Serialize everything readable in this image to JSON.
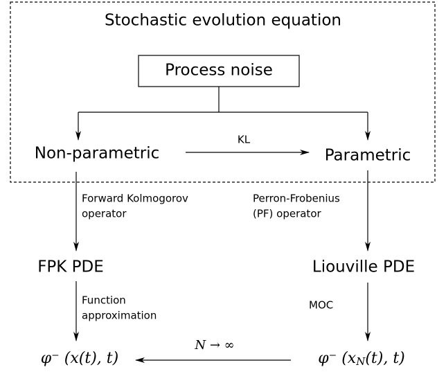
{
  "title": "Stochastic evolution equation",
  "nodes": {
    "process_noise": "Process noise",
    "non_parametric": "Non-parametric",
    "parametric": "Parametric",
    "fpk_pde": "FPK PDE",
    "liouville_pde": "Liouville PDE",
    "phi_left": "φ⁻ (x(t), t)",
    "phi_right": {
      "base": "φ⁻ (x",
      "sub": "N",
      "rest": "(t), t)"
    }
  },
  "edges": {
    "kl": "KL",
    "forward_kolmogorov": [
      "Forward Kolmogorov",
      "operator"
    ],
    "perron_frobenius": [
      "Perron-Frobenius",
      "(PF) operator"
    ],
    "function_approximation": [
      "Function",
      "approximation"
    ],
    "moc": "MOC",
    "limit": "N → ∞"
  }
}
